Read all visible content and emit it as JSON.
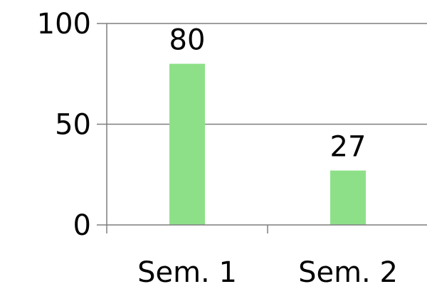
{
  "chart_data": {
    "type": "bar",
    "categories": [
      "Sem. 1",
      "Sem. 2"
    ],
    "values": [
      80,
      27
    ],
    "data_labels": [
      "80",
      "27"
    ],
    "ylim": [
      0,
      100
    ],
    "yticks": [
      0,
      50,
      100
    ],
    "ytick_labels": [
      "0",
      "50",
      "100"
    ],
    "grid": true,
    "legend": "none",
    "title": "",
    "xlabel": "",
    "ylabel": "",
    "bar_color": "#8ee088",
    "grid_color": "#7f7f7f"
  }
}
